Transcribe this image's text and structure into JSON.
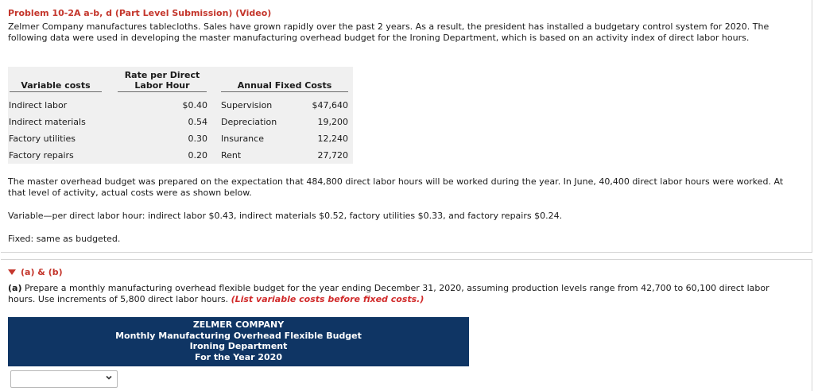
{
  "problem": {
    "title": "Problem 10-2A a-b, d (Part Level Submission) (Video)",
    "intro": "Zelmer Company manufactures tablecloths. Sales have grown rapidly over the past 2 years. As a result, the president has installed a budgetary control system for 2020. The following data were used in developing the master manufacturing overhead budget for the Ironing Department, which is based on an activity index of direct labor hours."
  },
  "table": {
    "col_variable": "Variable costs",
    "col_rate": "Rate per Direct Labor Hour",
    "col_fixed": "Annual Fixed Costs",
    "variable_rows": [
      {
        "name": "Indirect labor",
        "rate": "$0.40"
      },
      {
        "name": "Indirect materials",
        "rate": "0.54"
      },
      {
        "name": "Factory utilities",
        "rate": "0.30"
      },
      {
        "name": "Factory repairs",
        "rate": "0.20"
      }
    ],
    "fixed_rows": [
      {
        "name": "Supervision",
        "amount": "$47,640"
      },
      {
        "name": "Depreciation",
        "amount": "19,200"
      },
      {
        "name": "Insurance",
        "amount": "12,240"
      },
      {
        "name": "Rent",
        "amount": "27,720"
      }
    ]
  },
  "paragraphs": {
    "master": "The master overhead budget was prepared on the expectation that 484,800 direct labor hours will be worked during the year. In June, 40,400 direct labor hours were worked. At that level of activity, actual costs were as shown below.",
    "variable": "Variable—per direct labor hour: indirect labor $0.43, indirect materials $0.52, factory utilities $0.33, and factory repairs $0.24.",
    "fixed": "Fixed: same as budgeted."
  },
  "section": {
    "label": "(a) & (b)",
    "part_a_prefix": "(a)",
    "part_a_text": " Prepare a monthly manufacturing overhead flexible budget for the year ending December 31, 2020, assuming production levels range from 42,700 to 60,100 direct labor hours. Use increments of 5,800 direct labor hours. ",
    "instruction": "(List variable costs before fixed costs.)"
  },
  "banner": {
    "company": "ZELMER COMPANY",
    "title": "Monthly Manufacturing Overhead Flexible Budget",
    "department": "Ironing Department",
    "period": "For the Year 2020"
  },
  "dropdown": {
    "value": ""
  },
  "colors": {
    "accent_red": "#c4362c",
    "banner_blue": "#0f3564",
    "table_bg": "#f0f0f0"
  }
}
